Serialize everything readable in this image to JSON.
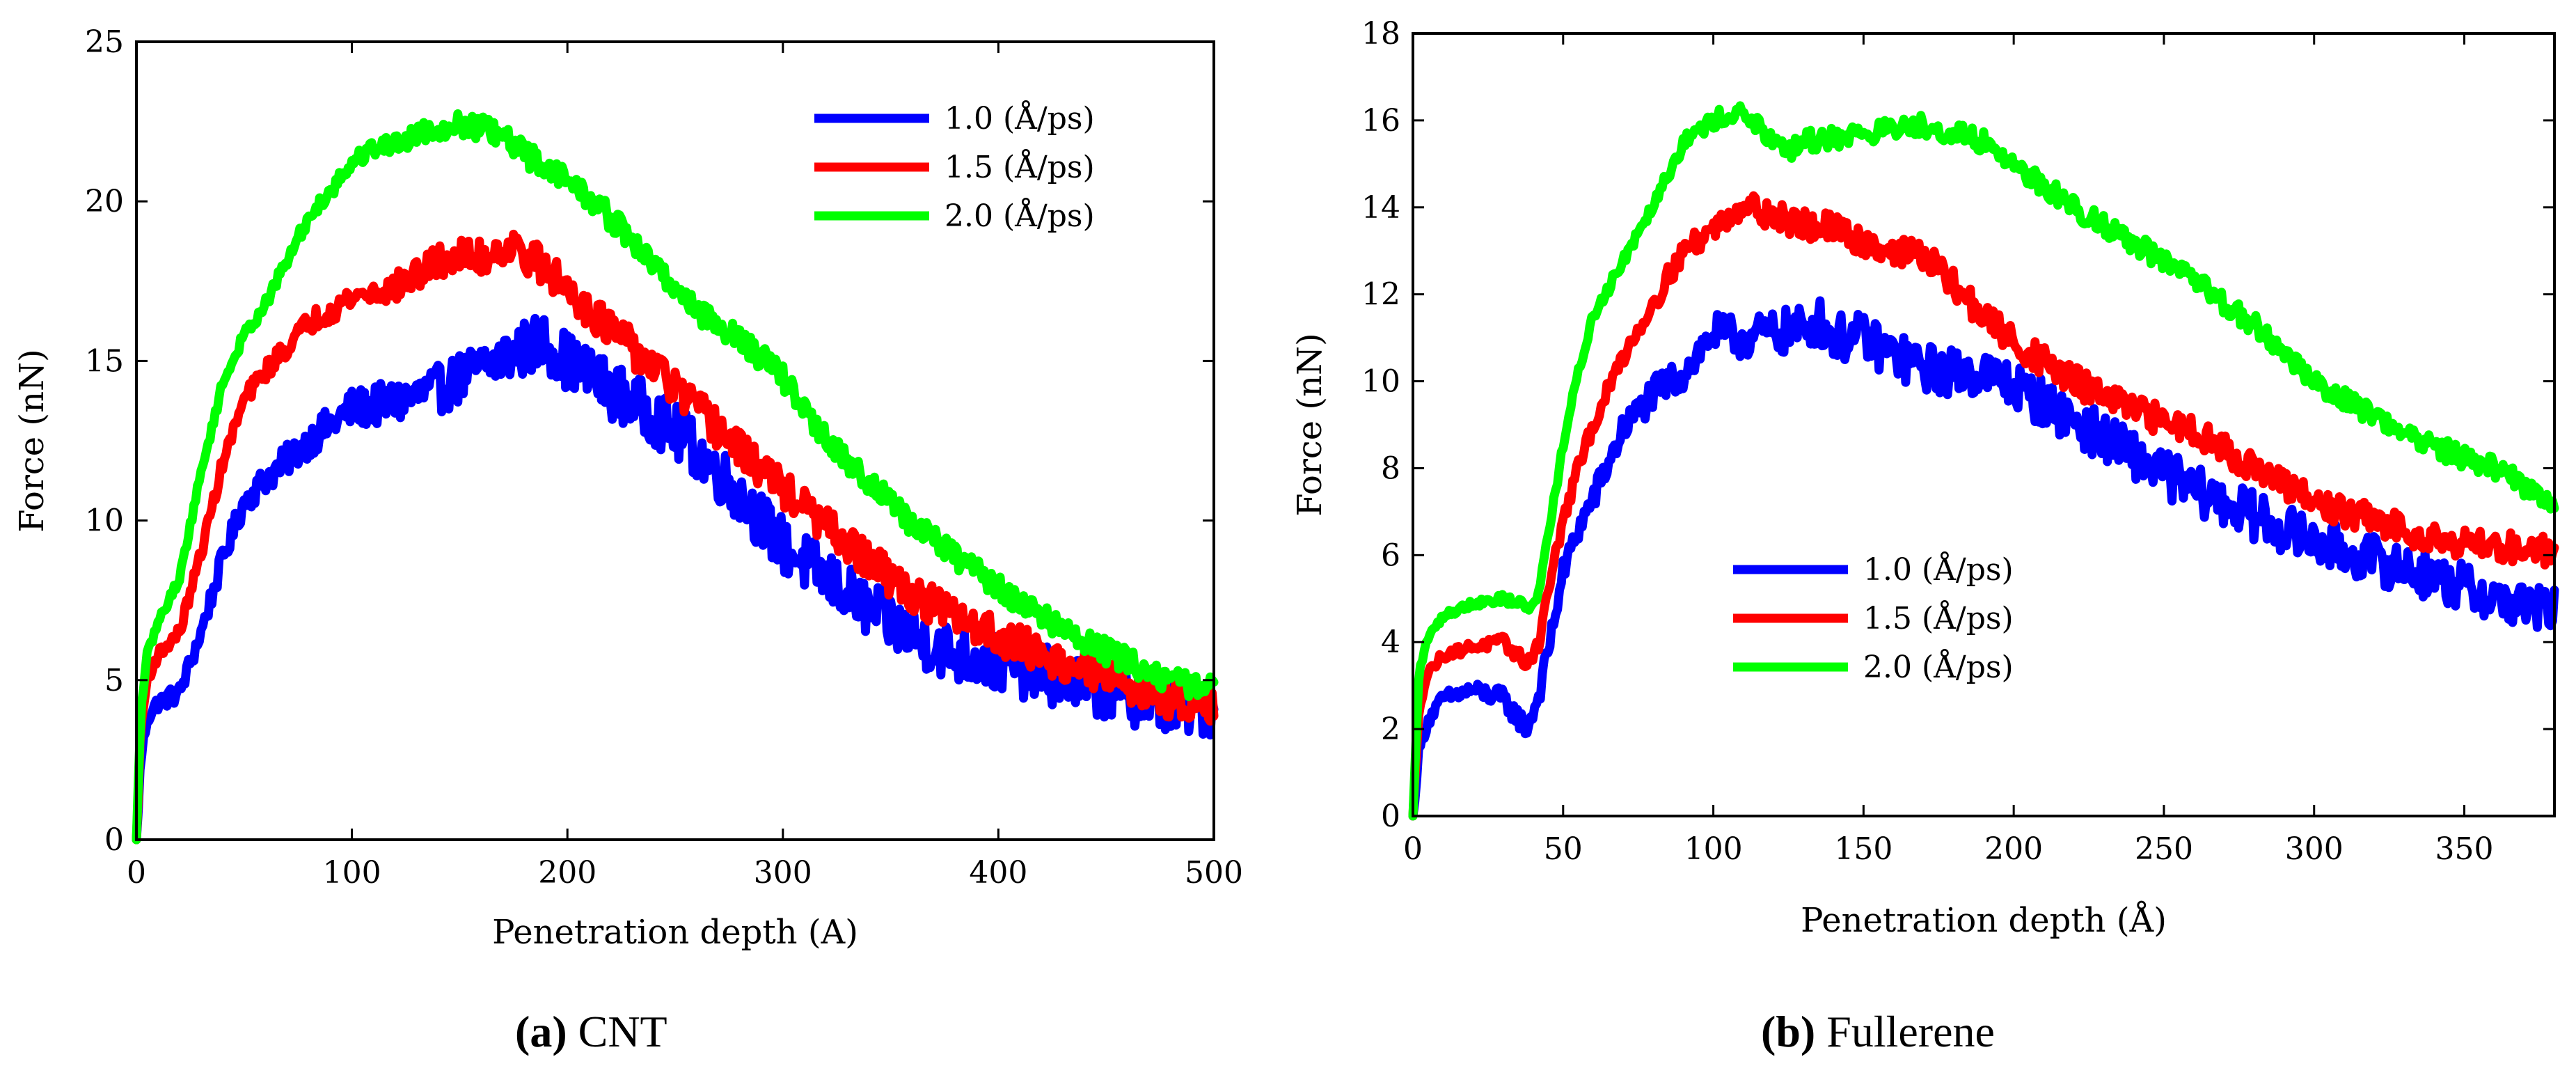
{
  "chart_data": [
    {
      "type": "line",
      "id": "cnt",
      "caption_letter": "a",
      "caption_text": "CNT",
      "xlabel": "Penetration depth (A)",
      "ylabel": "Force (nN)",
      "xlim": [
        0,
        500
      ],
      "ylim": [
        0,
        25
      ],
      "xticks": [
        0,
        100,
        200,
        300,
        400,
        500
      ],
      "yticks": [
        0,
        5,
        10,
        15,
        20,
        25
      ],
      "legend_position": "top-right",
      "series": [
        {
          "name": "1.0 (Å/ps)",
          "color": "#0000ff",
          "noise": 0.9,
          "x": [
            0,
            2,
            5,
            10,
            20,
            30,
            40,
            50,
            60,
            80,
            100,
            120,
            140,
            160,
            180,
            190,
            200,
            220,
            240,
            260,
            280,
            300,
            320,
            340,
            360,
            380,
            400,
            420,
            440,
            460,
            480,
            500
          ],
          "y": [
            0,
            2.5,
            3.8,
            4.3,
            4.6,
            6.5,
            8.8,
            10.6,
            11.3,
            12.5,
            13.5,
            13.7,
            14.1,
            14.8,
            15.4,
            15.6,
            15.0,
            14.1,
            13.3,
            12.2,
            10.8,
            9.2,
            8.2,
            7.2,
            6.4,
            5.8,
            5.5,
            5.2,
            4.8,
            4.5,
            4.2,
            4.1
          ]
        },
        {
          "name": "1.5 (Å/ps)",
          "color": "#ff0000",
          "noise": 0.6,
          "x": [
            0,
            2,
            5,
            10,
            20,
            30,
            40,
            50,
            60,
            80,
            100,
            120,
            140,
            150,
            160,
            170,
            180,
            200,
            220,
            240,
            260,
            280,
            300,
            320,
            340,
            360,
            380,
            400,
            420,
            440,
            460,
            480,
            500
          ],
          "y": [
            0,
            3.5,
            5.0,
            5.8,
            6.5,
            9.0,
            11.8,
            13.8,
            14.7,
            16.2,
            17.0,
            17.3,
            18.1,
            18.3,
            18.2,
            18.6,
            18.4,
            17.3,
            16.0,
            14.8,
            13.5,
            12.2,
            11.0,
            9.8,
            8.7,
            7.7,
            7.0,
            6.4,
            5.8,
            5.3,
            4.9,
            4.4,
            4.3
          ]
        },
        {
          "name": "2.0 (Å/ps)",
          "color": "#00ff00",
          "noise": 0.4,
          "x": [
            0,
            2,
            5,
            10,
            20,
            30,
            40,
            50,
            60,
            80,
            100,
            110,
            120,
            130,
            140,
            150,
            160,
            170,
            180,
            200,
            220,
            240,
            260,
            280,
            300,
            320,
            340,
            360,
            380,
            400,
            420,
            440,
            460,
            480,
            500
          ],
          "y": [
            0,
            4.0,
            5.8,
            6.8,
            8.2,
            11.5,
            14.3,
            15.8,
            16.8,
            19.5,
            21.2,
            21.7,
            21.8,
            22.1,
            22.3,
            22.4,
            22.3,
            22.0,
            21.5,
            20.7,
            19.5,
            18.0,
            16.6,
            15.7,
            14.5,
            12.5,
            11.2,
            9.9,
            8.9,
            7.9,
            7.0,
            6.2,
            5.6,
            5.0,
            4.7
          ]
        }
      ]
    },
    {
      "type": "line",
      "id": "fullerene",
      "caption_letter": "b",
      "caption_text": "Fullerene",
      "xlabel": "Penetration depth (Å)",
      "ylabel": "Force (nN)",
      "xlim": [
        0,
        380
      ],
      "ylim": [
        0,
        18
      ],
      "xticks": [
        0,
        50,
        100,
        150,
        200,
        250,
        300,
        350
      ],
      "yticks": [
        0,
        2,
        4,
        6,
        8,
        10,
        12,
        14,
        16,
        18
      ],
      "legend_position": "center-left",
      "series": [
        {
          "name": "1.0 (Å/ps)",
          "color": "#0000ff",
          "noise": 0.55,
          "x": [
            0,
            2,
            5,
            10,
            20,
            30,
            38,
            42,
            45,
            50,
            55,
            60,
            70,
            80,
            90,
            100,
            110,
            120,
            130,
            135,
            140,
            150,
            160,
            170,
            180,
            190,
            200,
            220,
            240,
            260,
            280,
            300,
            320,
            340,
            360,
            380
          ],
          "y": [
            0,
            1.5,
            2.2,
            2.7,
            2.9,
            2.7,
            2.0,
            2.8,
            3.8,
            5.6,
            6.6,
            7.3,
            8.9,
            9.7,
            10.2,
            11.1,
            11.0,
            11.1,
            11.2,
            11.4,
            11.0,
            11.0,
            10.6,
            10.3,
            10.2,
            10.2,
            9.9,
            9.1,
            8.3,
            7.5,
            6.9,
            6.3,
            5.9,
            5.5,
            5.0,
            4.7
          ]
        },
        {
          "name": "1.5 (Å/ps)",
          "color": "#ff0000",
          "noise": 0.35,
          "x": [
            0,
            2,
            5,
            10,
            20,
            30,
            38,
            42,
            45,
            50,
            55,
            60,
            70,
            80,
            90,
            100,
            110,
            120,
            130,
            140,
            150,
            160,
            170,
            180,
            190,
            200,
            220,
            240,
            260,
            280,
            300,
            320,
            340,
            360,
            380
          ],
          "y": [
            0,
            2.5,
            3.3,
            3.7,
            3.9,
            4.0,
            3.5,
            4.0,
            5.2,
            6.8,
            8.0,
            9.0,
            10.6,
            11.8,
            13.0,
            13.5,
            14.1,
            13.8,
            13.6,
            13.5,
            13.2,
            13.0,
            12.9,
            12.2,
            11.5,
            10.9,
            10.0,
            9.3,
            8.9,
            8.0,
            7.2,
            6.8,
            6.4,
            6.2,
            6.1
          ]
        },
        {
          "name": "2.0 (Å/ps)",
          "color": "#00ff00",
          "noise": 0.25,
          "x": [
            0,
            2,
            5,
            10,
            20,
            30,
            40,
            42,
            45,
            50,
            55,
            60,
            70,
            80,
            90,
            100,
            108,
            115,
            120,
            125,
            130,
            140,
            150,
            160,
            170,
            180,
            190,
            200,
            220,
            240,
            260,
            280,
            300,
            320,
            340,
            360,
            380
          ],
          "y": [
            0,
            3.3,
            4.1,
            4.6,
            4.9,
            5.0,
            4.8,
            5.2,
            6.5,
            8.5,
            10.2,
            11.5,
            12.8,
            14.1,
            15.5,
            16.0,
            16.2,
            15.9,
            15.4,
            15.3,
            15.5,
            15.6,
            15.7,
            15.8,
            15.9,
            15.7,
            15.5,
            15.0,
            14.0,
            13.2,
            12.3,
            11.3,
            10.0,
            9.2,
            8.5,
            8.0,
            7.2
          ]
        }
      ]
    }
  ]
}
